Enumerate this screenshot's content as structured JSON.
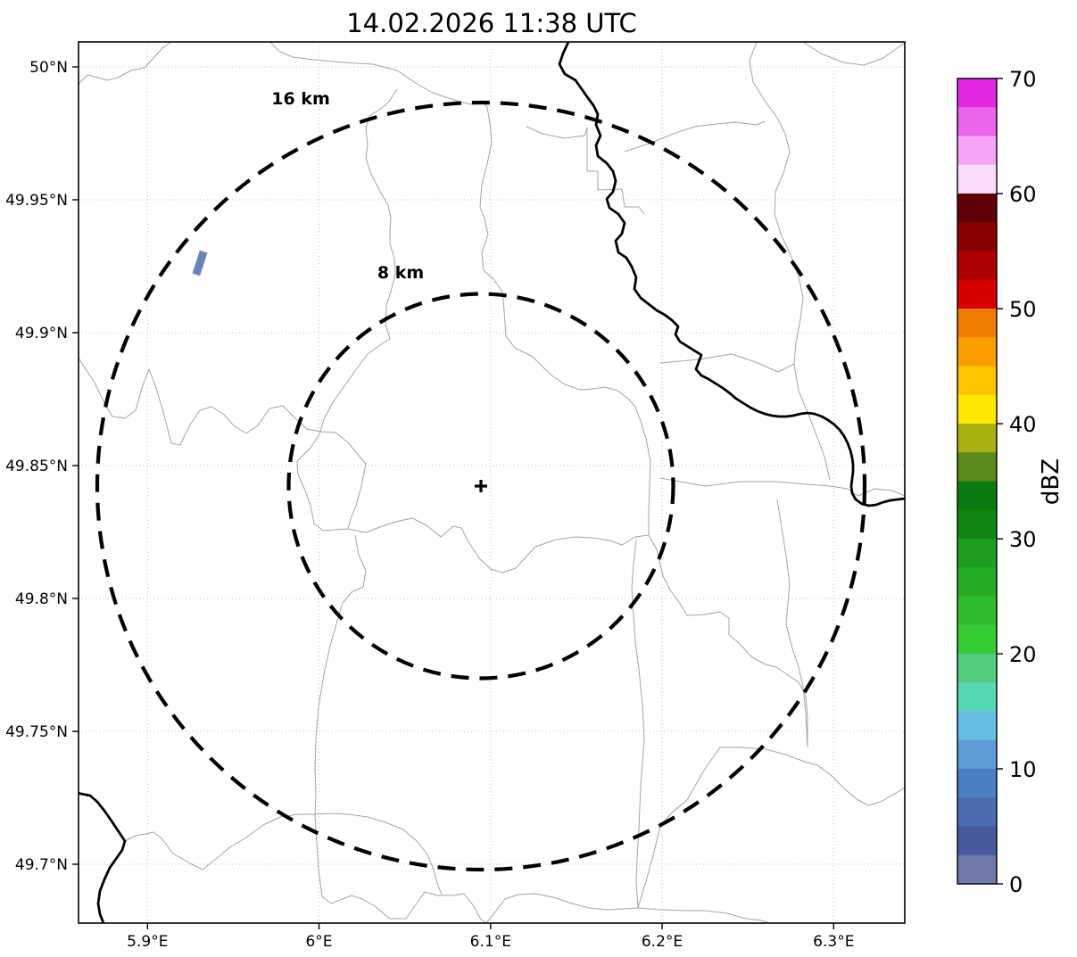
{
  "title": "14.02.2026 11:38 UTC",
  "map": {
    "x_ticks": [
      "5.9°E",
      "6°E",
      "6.1°E",
      "6.2°E",
      "6.3°E"
    ],
    "y_ticks": [
      "50°N",
      "49.95°N",
      "49.9°N",
      "49.85°N",
      "49.8°N",
      "49.75°N",
      "49.7°N"
    ],
    "range_ring_outer_label": "16 km",
    "range_ring_inner_label": "8 km",
    "center_marker": "+",
    "radar_center": {
      "approx_lon": "6.09°E",
      "approx_lat": "49.84°N"
    },
    "echo": {
      "color": "#6B84B8",
      "approx_dbz": "0-7.5",
      "approx_lon": "5.93°E",
      "approx_lat": "49.93°N"
    }
  },
  "colorbar": {
    "label": "dBZ",
    "min": 0,
    "max": 70,
    "tick_labels": [
      "70",
      "60",
      "50",
      "40",
      "30",
      "20",
      "10",
      "0"
    ],
    "segments_top_to_bottom": [
      "#E228E2",
      "#EC63EC",
      "#F5A5F5",
      "#FADCFA",
      "#5F0008",
      "#860000",
      "#AE0000",
      "#D90000",
      "#F27C00",
      "#FA9E00",
      "#FFC400",
      "#FFE800",
      "#A9B012",
      "#5A8A1B",
      "#0B7A10",
      "#128812",
      "#1D9E1D",
      "#25AD25",
      "#2EBD2E",
      "#36CC36",
      "#50CE7E",
      "#57D8B5",
      "#67BEE2",
      "#5E9CD8",
      "#4B80C3",
      "#4B6CB0",
      "#48599D",
      "#6F7AA9"
    ]
  }
}
